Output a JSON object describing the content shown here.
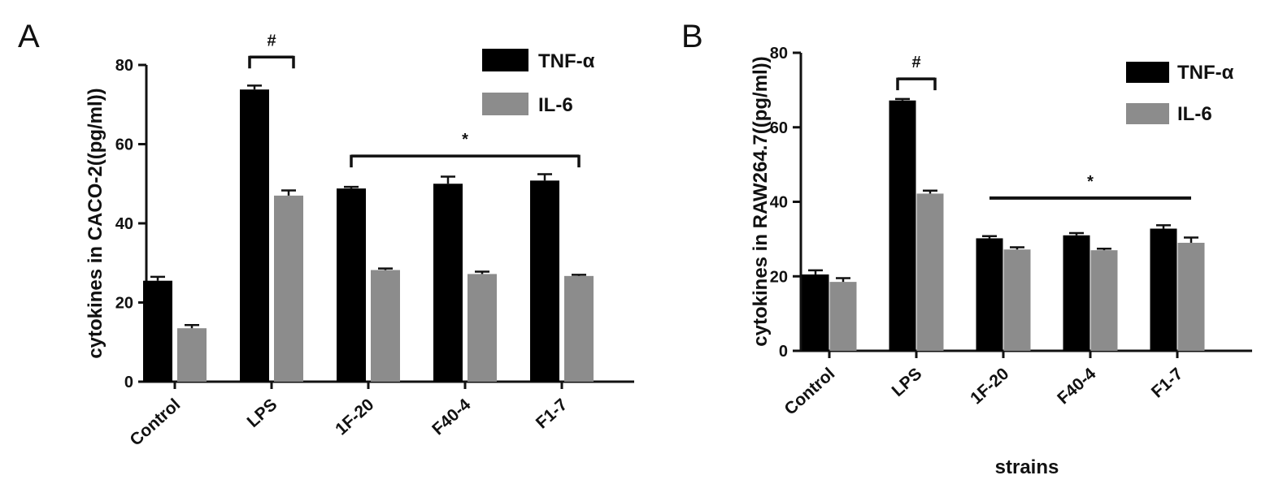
{
  "chart_data": [
    {
      "type": "bar",
      "panel_label": "A",
      "title": "",
      "xlabel": "",
      "ylabel": "cytokines  in CACO-2((pg/ml))",
      "ylim": [
        0,
        80
      ],
      "yticks": [
        "0",
        "20",
        "40",
        "60",
        "80"
      ],
      "categories": [
        "Control",
        "LPS",
        "1F-20",
        "F40-4",
        "F1-7"
      ],
      "series": [
        {
          "name": "TNF-α",
          "color": "#000000",
          "values": [
            25.5,
            73.8,
            48.8,
            50.0,
            50.8
          ],
          "errors": [
            1.0,
            1.0,
            0.4,
            1.8,
            1.6
          ]
        },
        {
          "name": "IL-6",
          "color": "#8c8c8c",
          "values": [
            13.5,
            47.0,
            28.2,
            27.2,
            26.7
          ],
          "errors": [
            0.8,
            1.3,
            0.4,
            0.6,
            0.3
          ]
        }
      ],
      "legend_position": "top-right",
      "annotations": [
        {
          "text": "#",
          "type": "bracket",
          "from_category": "LPS",
          "to_category": "LPS",
          "level": 82
        },
        {
          "text": "*",
          "type": "bracket",
          "from_category": "1F-20",
          "to_category": "F1-7",
          "level": 57
        }
      ]
    },
    {
      "type": "bar",
      "panel_label": "B",
      "title": "",
      "xlabel": "strains",
      "ylabel": "cytokines  in RAW264.7((pg/ml))",
      "ylim": [
        0,
        80
      ],
      "yticks": [
        "0",
        "20",
        "40",
        "60",
        "80"
      ],
      "categories": [
        "Control",
        "LPS",
        "1F-20",
        "F40-4",
        "F1-7"
      ],
      "series": [
        {
          "name": "TNF-α",
          "color": "#000000",
          "values": [
            20.5,
            67.2,
            30.2,
            31.0,
            32.8
          ],
          "errors": [
            1.1,
            0.4,
            0.6,
            0.6,
            0.9
          ]
        },
        {
          "name": "IL-6",
          "color": "#8c8c8c",
          "values": [
            18.5,
            42.2,
            27.2,
            27.0,
            29.0
          ],
          "errors": [
            1.0,
            0.8,
            0.6,
            0.4,
            1.4
          ]
        }
      ],
      "legend_position": "top-right",
      "annotations": [
        {
          "text": "#",
          "type": "bracket",
          "from_category": "LPS",
          "to_category": "LPS",
          "level": 73
        },
        {
          "text": "*",
          "type": "bar-line",
          "from_category": "1F-20",
          "to_category": "F1-7",
          "level": 41
        }
      ]
    }
  ]
}
